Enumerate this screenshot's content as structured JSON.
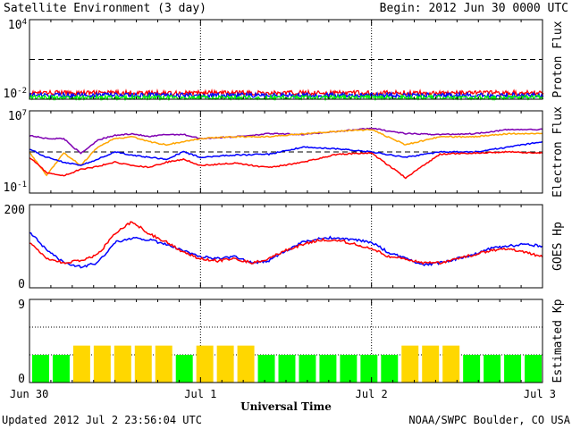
{
  "header": {
    "title": "Satellite Environment (3 day)",
    "begin": "Begin:  2012 Jun 30 0000 UTC"
  },
  "footer": {
    "updated": "Updated 2012 Jul  2 23:56:04 UTC",
    "credit": "NOAA/SWPC Boulder, CO USA",
    "xlabel": "Universal Time"
  },
  "chart_data": [
    {
      "type": "line",
      "ylabel": "Proton Flux",
      "yscale": "log",
      "ylim": [
        0.01,
        10000
      ],
      "ytick_labels": [
        "10^4",
        "10^-2"
      ],
      "threshold": 10,
      "series": [
        {
          "color": "#ff0000",
          "level": 0.03
        },
        {
          "color": "#0000ff",
          "level": 0.02
        },
        {
          "color": "#00ff00",
          "level": 0.013
        }
      ]
    },
    {
      "type": "line",
      "ylabel": "Electron Flux",
      "yscale": "log",
      "ylim": [
        0.1,
        10000000
      ],
      "ytick_labels": [
        "10^7",
        "10^-1"
      ],
      "threshold": 1000,
      "series": [
        {
          "color": "#7f00b2",
          "x": [
            0,
            0.1,
            0.2,
            0.3,
            0.4,
            0.5,
            0.6,
            0.7,
            0.8,
            0.9,
            1.0,
            1.2,
            1.4,
            1.6,
            1.8,
            2.0,
            2.2,
            2.4,
            2.6,
            2.8,
            3.0
          ],
          "y": [
            40000,
            20000,
            20000,
            700,
            15000,
            40000,
            60000,
            30000,
            50000,
            50000,
            20000,
            30000,
            60000,
            50000,
            100000,
            200000,
            60000,
            50000,
            60000,
            150000,
            150000
          ]
        },
        {
          "color": "#ffa500",
          "x": [
            0,
            0.1,
            0.2,
            0.3,
            0.4,
            0.5,
            0.6,
            0.7,
            0.8,
            0.9,
            1.0,
            1.2,
            1.4,
            1.6,
            1.8,
            2.0,
            2.2,
            2.4,
            2.6,
            2.8,
            3.0
          ],
          "y": [
            1000,
            5,
            800,
            50,
            3000,
            20000,
            30000,
            10000,
            5000,
            10000,
            20000,
            30000,
            30000,
            60000,
            100000,
            150000,
            5000,
            30000,
            30000,
            60000,
            60000
          ]
        },
        {
          "color": "#0000ff",
          "x": [
            0,
            0.1,
            0.2,
            0.3,
            0.4,
            0.5,
            0.6,
            0.7,
            0.8,
            0.9,
            1.0,
            1.2,
            1.4,
            1.6,
            1.8,
            2.0,
            2.2,
            2.4,
            2.6,
            2.8,
            3.0
          ],
          "y": [
            2000,
            300,
            100,
            50,
            200,
            1000,
            500,
            300,
            200,
            1000,
            300,
            500,
            600,
            3000,
            2000,
            1000,
            300,
            1000,
            1000,
            3000,
            10000
          ]
        },
        {
          "color": "#ff0000",
          "x": [
            0,
            0.1,
            0.2,
            0.3,
            0.4,
            0.5,
            0.6,
            0.7,
            0.8,
            0.9,
            1.0,
            1.2,
            1.4,
            1.6,
            1.8,
            2.0,
            2.2,
            2.4,
            2.6,
            2.8,
            3.0
          ],
          "y": [
            300,
            10,
            5,
            20,
            40,
            100,
            50,
            30,
            100,
            200,
            50,
            80,
            30,
            100,
            600,
            800,
            3,
            600,
            800,
            1000,
            800
          ]
        }
      ]
    },
    {
      "type": "line",
      "ylabel": "GOES Hp",
      "ylim": [
        0,
        200
      ],
      "yticks": [
        0,
        200
      ],
      "series": [
        {
          "color": "#0000ff",
          "x": [
            0,
            0.1,
            0.2,
            0.3,
            0.4,
            0.5,
            0.6,
            0.7,
            0.8,
            0.9,
            1.0,
            1.1,
            1.2,
            1.3,
            1.4,
            1.5,
            1.6,
            1.7,
            1.8,
            1.9,
            2.0,
            2.1,
            2.2,
            2.3,
            2.4,
            2.5,
            2.6,
            2.7,
            2.8,
            2.9,
            3.0
          ],
          "y": [
            135,
            90,
            60,
            50,
            60,
            110,
            120,
            115,
            105,
            90,
            75,
            70,
            75,
            60,
            65,
            90,
            110,
            120,
            120,
            115,
            110,
            85,
            70,
            55,
            60,
            70,
            80,
            95,
            100,
            105,
            100
          ]
        },
        {
          "color": "#ff0000",
          "x": [
            0,
            0.1,
            0.2,
            0.3,
            0.4,
            0.5,
            0.6,
            0.7,
            0.8,
            0.9,
            1.0,
            1.1,
            1.2,
            1.3,
            1.4,
            1.5,
            1.6,
            1.7,
            1.8,
            1.9,
            2.0,
            2.1,
            2.2,
            2.3,
            2.4,
            2.5,
            2.6,
            2.7,
            2.8,
            2.9,
            3.0
          ],
          "y": [
            110,
            70,
            60,
            65,
            80,
            130,
            160,
            130,
            110,
            85,
            70,
            65,
            70,
            60,
            70,
            90,
            105,
            115,
            115,
            105,
            95,
            75,
            70,
            60,
            60,
            70,
            80,
            90,
            95,
            85,
            75
          ]
        }
      ]
    },
    {
      "type": "bar",
      "ylabel": "Estimated Kp",
      "ylim": [
        0,
        9
      ],
      "yticks": [
        0,
        9
      ],
      "colors": {
        "quiet": "#00ff00",
        "active": "#ffd700"
      },
      "active_threshold": 4,
      "values": [
        3,
        3,
        4,
        4,
        4,
        4,
        4,
        3,
        4,
        4,
        4,
        3,
        3,
        3,
        3,
        3,
        3,
        3,
        4,
        4,
        4,
        3,
        3,
        3,
        3
      ]
    }
  ],
  "x_axis": {
    "ticks": [
      {
        "value": 0,
        "label": "Jun 30"
      },
      {
        "value": 1,
        "label": "Jul 1"
      },
      {
        "value": 2,
        "label": "Jul 2"
      },
      {
        "value": 3,
        "label": "Jul 3"
      }
    ]
  }
}
